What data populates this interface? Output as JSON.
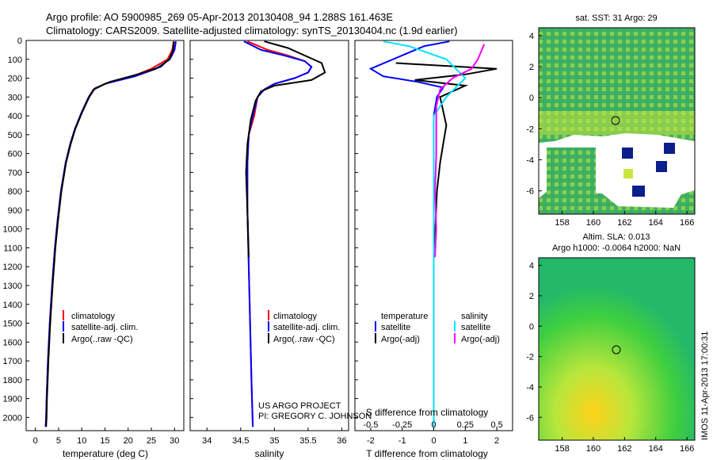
{
  "header": {
    "line1": "Argo profile: AO 5900985_269 05-Apr-2013 20130408_94 1.288S 161.463E",
    "line2": "Climatology: CARS2009. Satellite-adjusted climatology: synTS_20130404.nc (1.9d earlier)"
  },
  "pressure_ticks": [
    "0",
    "100",
    "200",
    "300",
    "400",
    "500",
    "600",
    "700",
    "800",
    "900",
    "1000",
    "1100",
    "1200",
    "1300",
    "1400",
    "1500",
    "1600",
    "1700",
    "1800",
    "1900",
    "2000"
  ],
  "panels": {
    "temperature": {
      "xlabel": "temperature (deg C)",
      "xticks": [
        "0",
        "5",
        "10",
        "15",
        "20",
        "25",
        "30"
      ],
      "legend": [
        "climatology",
        "satellite-adj. clim.",
        "Argo(..raw -QC)"
      ]
    },
    "salinity": {
      "xlabel": "salinity",
      "xticks": [
        "34",
        "34.5",
        "35",
        "35.5",
        "36"
      ],
      "legend": [
        "climatology",
        "satellite-adj. clim.",
        "Argo(..raw -QC)"
      ],
      "credit1": "US ARGO PROJECT",
      "credit2": "PI: GREGORY C. JOHNSON"
    },
    "difference": {
      "xlabel": "T difference from climatology",
      "top_xlabel": "S difference from climatology",
      "t_ticks": [
        "-2",
        "-1",
        "0",
        "1",
        "2"
      ],
      "s_ticks": [
        "-0.5",
        "-0.25",
        "0",
        "0.25",
        "0.5"
      ],
      "legend_t_title": "temperature",
      "legend_s_title": "salinity",
      "legend_t": [
        "satellite",
        "Argo(-adj)"
      ],
      "legend_s": [
        "satellite",
        "Argo(-adj)"
      ]
    }
  },
  "map_sst": {
    "title": "sat. SST: 31 Argo: 29",
    "yticks": [
      "4",
      "2",
      "0",
      "-2",
      "-4",
      "-6"
    ],
    "xticks": [
      "158",
      "160",
      "162",
      "164",
      "166"
    ]
  },
  "map_sla": {
    "title1": "Altim. SLA: 0.013",
    "title2": "Argo h1000: -0.0064 h2000: NaN",
    "yticks": [
      "4",
      "2",
      "0",
      "-2",
      "-4",
      "-6"
    ],
    "xticks": [
      "158",
      "160",
      "162",
      "164",
      "166"
    ],
    "side_text": "IMOS 11-Apr-2013 17:00:31"
  },
  "colors": {
    "climatology": "#ff0000",
    "satellite": "#0000ff",
    "argo": "#000000",
    "salinity_satellite": "#00e5ff",
    "salinity_argo": "#ff00ff"
  },
  "chart_data": [
    {
      "type": "line",
      "title": "",
      "xlabel": "temperature (deg C)",
      "ylabel": "",
      "xlim": [
        -2,
        32
      ],
      "ylim": [
        2070,
        0
      ],
      "series": [
        {
          "name": "climatology",
          "points": [
            [
              29.8,
              5
            ],
            [
              29.5,
              50
            ],
            [
              28.5,
              100
            ],
            [
              25,
              150
            ],
            [
              21,
              190
            ],
            [
              15,
              230
            ],
            [
              12.5,
              260
            ],
            [
              11.5,
              300
            ],
            [
              10,
              380
            ],
            [
              8.5,
              470
            ],
            [
              7.5,
              550
            ],
            [
              6.5,
              650
            ],
            [
              5.5,
              800
            ],
            [
              4.8,
              950
            ],
            [
              4.2,
              1100
            ],
            [
              3.6,
              1300
            ],
            [
              3.1,
              1500
            ],
            [
              2.7,
              1700
            ],
            [
              2.4,
              1900
            ],
            [
              2.3,
              2000
            ],
            [
              2.2,
              2050
            ]
          ]
        },
        {
          "name": "satellite-adj. clim.",
          "points": [
            [
              30.3,
              5
            ],
            [
              30,
              50
            ],
            [
              29,
              100
            ],
            [
              26,
              150
            ],
            [
              21.5,
              190
            ],
            [
              15,
              230
            ],
            [
              12.6,
              260
            ],
            [
              11.5,
              300
            ],
            [
              10,
              380
            ],
            [
              8.5,
              470
            ],
            [
              7.5,
              550
            ],
            [
              6.5,
              650
            ],
            [
              5.5,
              800
            ],
            [
              4.8,
              950
            ],
            [
              4.2,
              1100
            ],
            [
              3.6,
              1300
            ],
            [
              3.1,
              1500
            ],
            [
              2.7,
              1700
            ],
            [
              2.4,
              1900
            ],
            [
              2.3,
              2000
            ],
            [
              2.2,
              2050
            ]
          ]
        },
        {
          "name": "Argo(..raw -QC)",
          "points": [
            [
              29.9,
              5
            ],
            [
              29.6,
              60
            ],
            [
              28.8,
              100
            ],
            [
              27,
              140
            ],
            [
              22,
              180
            ],
            [
              16,
              220
            ],
            [
              12.8,
              255
            ],
            [
              11.6,
              300
            ],
            [
              10.1,
              380
            ],
            [
              8.6,
              470
            ],
            [
              7.6,
              550
            ],
            [
              6.6,
              650
            ],
            [
              5.6,
              800
            ],
            [
              4.9,
              950
            ],
            [
              4.3,
              1100
            ],
            [
              3.7,
              1300
            ],
            [
              3.2,
              1500
            ],
            [
              2.8,
              1700
            ],
            [
              2.5,
              1900
            ],
            [
              2.4,
              2000
            ],
            [
              2.3,
              2050
            ]
          ]
        }
      ]
    },
    {
      "type": "line",
      "title": "",
      "xlabel": "salinity",
      "ylabel": "",
      "xlim": [
        33.75,
        36.1
      ],
      "ylim": [
        2070,
        0
      ],
      "series": [
        {
          "name": "climatology",
          "points": [
            [
              34.6,
              5
            ],
            [
              34.9,
              50
            ],
            [
              35.2,
              80
            ],
            [
              35.45,
              110
            ],
            [
              35.55,
              140
            ],
            [
              35.5,
              170
            ],
            [
              35.3,
              200
            ],
            [
              35.0,
              230
            ],
            [
              34.85,
              260
            ],
            [
              34.75,
              300
            ],
            [
              34.7,
              400
            ],
            [
              34.62,
              500
            ],
            [
              34.6,
              650
            ],
            [
              34.6,
              900
            ],
            [
              34.62,
              1200
            ],
            [
              34.64,
              1500
            ],
            [
              34.66,
              1800
            ],
            [
              34.68,
              2050
            ]
          ]
        },
        {
          "name": "satellite-adj. clim.",
          "points": [
            [
              34.55,
              5
            ],
            [
              34.8,
              50
            ],
            [
              35.15,
              80
            ],
            [
              35.45,
              110
            ],
            [
              35.55,
              140
            ],
            [
              35.5,
              170
            ],
            [
              35.3,
              200
            ],
            [
              35.0,
              230
            ],
            [
              34.85,
              260
            ],
            [
              34.75,
              300
            ],
            [
              34.68,
              400
            ],
            [
              34.62,
              500
            ],
            [
              34.6,
              650
            ],
            [
              34.6,
              900
            ],
            [
              34.62,
              1200
            ],
            [
              34.64,
              1500
            ],
            [
              34.66,
              1800
            ],
            [
              34.68,
              2050
            ]
          ]
        },
        {
          "name": "Argo(..raw -QC)",
          "points": [
            [
              34.85,
              5
            ],
            [
              35.2,
              40
            ],
            [
              35.45,
              80
            ],
            [
              35.7,
              120
            ],
            [
              35.75,
              170
            ],
            [
              35.55,
              210
            ],
            [
              35.0,
              240
            ],
            [
              34.8,
              270
            ],
            [
              34.72,
              320
            ],
            [
              34.65,
              420
            ],
            [
              34.6,
              550
            ],
            [
              34.58,
              700
            ],
            [
              34.6,
              900
            ],
            [
              34.62,
              1150
            ]
          ]
        }
      ]
    },
    {
      "type": "line",
      "title": "",
      "xlabel": "T difference from climatology",
      "ylabel": "",
      "xlim": [
        -2.5,
        2.5
      ],
      "ylim": [
        2070,
        0
      ],
      "series": [
        {
          "name": "temperature satellite",
          "points": [
            [
              0.5,
              5
            ],
            [
              -0.3,
              30
            ],
            [
              -2.0,
              150
            ],
            [
              -1.6,
              190
            ],
            [
              -0.5,
              220
            ],
            [
              0.3,
              250
            ],
            [
              0.1,
              300
            ],
            [
              0,
              400
            ],
            [
              0,
              800
            ],
            [
              0,
              1500
            ],
            [
              0,
              1900
            ],
            [
              0,
              2050
            ]
          ]
        },
        {
          "name": "temperature Argo(-adj)",
          "points": [
            [
              -1.2,
              120
            ],
            [
              2.0,
              150
            ],
            [
              1.0,
              180
            ],
            [
              -0.6,
              210
            ],
            [
              1.0,
              240
            ],
            [
              0.2,
              300
            ],
            [
              0.4,
              450
            ],
            [
              0.3,
              550
            ],
            [
              0.2,
              650
            ],
            [
              0.1,
              800
            ],
            [
              0.05,
              1000
            ],
            [
              0,
              1150
            ]
          ]
        },
        {
          "name": "salinity satellite",
          "points": [
            [
              -0.4,
              5
            ],
            [
              -0.2,
              30
            ],
            [
              0.1,
              100
            ],
            [
              0.25,
              200
            ],
            [
              0.1,
              300
            ],
            [
              0,
              400
            ],
            [
              0,
              1000
            ],
            [
              0,
              1500
            ],
            [
              0,
              2050
            ]
          ]
        },
        {
          "name": "salinity Argo(-adj)",
          "points": [
            [
              0.4,
              20
            ],
            [
              0.35,
              100
            ],
            [
              0.3,
              150
            ],
            [
              0.15,
              200
            ],
            [
              0.05,
              260
            ],
            [
              0.02,
              350
            ],
            [
              0.02,
              600
            ],
            [
              0.01,
              800
            ],
            [
              0.02,
              1000
            ],
            [
              0.01,
              1150
            ]
          ]
        }
      ]
    }
  ]
}
